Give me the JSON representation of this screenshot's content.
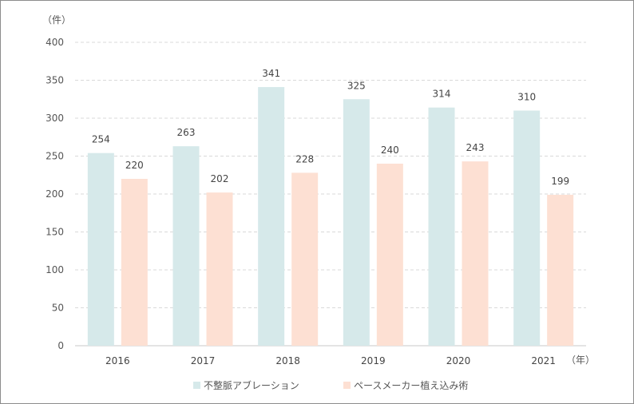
{
  "chart_data": {
    "type": "bar",
    "y_unit": "（件）",
    "x_unit": "（年）",
    "categories": [
      "2016",
      "2017",
      "2018",
      "2019",
      "2020",
      "2021"
    ],
    "series": [
      {
        "name": "不整脈アブレーション",
        "values": [
          254,
          263,
          341,
          325,
          314,
          310
        ],
        "color": "#d6e9ea"
      },
      {
        "name": "ペースメーカー植え込み術",
        "values": [
          220,
          202,
          228,
          240,
          243,
          199
        ],
        "color": "#fde0d3"
      }
    ],
    "ylim": [
      0,
      400
    ],
    "yticks": [
      0,
      50,
      100,
      150,
      200,
      250,
      300,
      350,
      400
    ],
    "grid": true,
    "legend_position": "bottom-center"
  }
}
